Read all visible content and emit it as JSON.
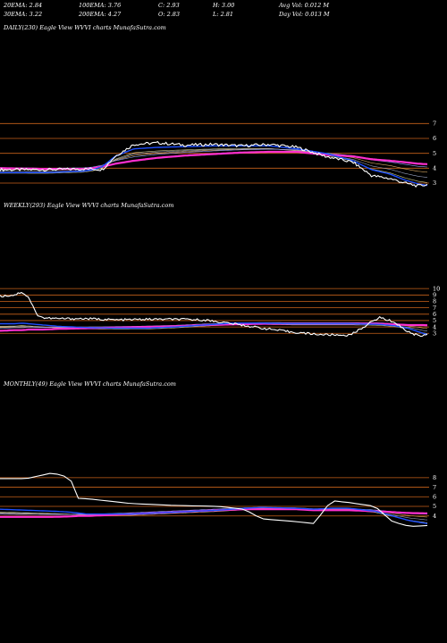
{
  "header": {
    "row1": [
      "20EMA: 2.84",
      "100EMA: 3.76",
      "C: 2.93",
      "H: 3.00",
      "Avg Vol: 0.012  M"
    ],
    "row2": [
      "30EMA: 3.22",
      "200EMA: 4.27",
      "O: 2.83",
      "L: 2.81",
      "Day Vol: 0.013 M"
    ]
  },
  "colors": {
    "price": "#ffffff",
    "ema_short": "#1e4fff",
    "ema_long": "#ff2fd0",
    "ema_mid": "#e8a020",
    "gridline": "#c8621a"
  },
  "chart_data": [
    {
      "type": "line",
      "title": "DAILY(230) Eagle  View  WVVI charts MunafaSutra.com",
      "yticks": [
        7,
        6,
        5,
        4,
        3
      ],
      "ylim": [
        2.4,
        7.8
      ],
      "x": [
        0,
        25,
        45,
        50,
        55,
        62,
        72,
        85,
        100,
        115,
        130,
        145,
        160,
        175,
        190,
        200,
        210,
        218,
        225,
        230
      ],
      "series": [
        {
          "role": "price",
          "values": [
            3.9,
            3.9,
            3.95,
            3.95,
            3.9,
            4.8,
            5.6,
            5.7,
            5.55,
            5.6,
            5.5,
            5.6,
            5.4,
            4.8,
            4.4,
            3.5,
            3.3,
            3.0,
            2.8,
            2.9
          ]
        },
        {
          "role": "ema_short",
          "values": [
            3.7,
            3.7,
            3.8,
            3.9,
            4.1,
            4.8,
            5.3,
            5.4,
            5.45,
            5.5,
            5.5,
            5.5,
            5.3,
            5.0,
            4.5,
            3.9,
            3.6,
            3.2,
            2.95,
            2.84
          ]
        },
        {
          "role": "ema_long",
          "values": [
            4.0,
            3.95,
            3.95,
            4.0,
            4.1,
            4.3,
            4.5,
            4.7,
            4.85,
            4.95,
            5.05,
            5.1,
            5.1,
            4.9,
            4.8,
            4.6,
            4.5,
            4.4,
            4.3,
            4.27
          ]
        }
      ]
    },
    {
      "type": "line",
      "title": "WEEKLY(293) Eagle  View  WVVI charts MunafaSutra.com",
      "yticks": [
        10,
        9,
        8,
        7,
        6,
        5,
        4,
        3
      ],
      "ylim": [
        1.5,
        11
      ],
      "x": [
        0,
        10,
        15,
        20,
        25,
        30,
        40,
        60,
        80,
        100,
        120,
        140,
        160,
        180,
        200,
        220,
        240,
        260,
        270,
        280,
        285,
        290,
        293
      ],
      "series": [
        {
          "role": "price",
          "values": [
            8.8,
            9.0,
            9.5,
            8.5,
            6.0,
            5.4,
            5.3,
            5.3,
            5.1,
            5.2,
            5.2,
            5.1,
            4.5,
            3.8,
            3.2,
            2.8,
            2.7,
            5.5,
            4.8,
            3.2,
            2.8,
            2.6,
            2.93
          ]
        },
        {
          "role": "ema_short",
          "values": [
            4.5,
            4.5,
            4.6,
            4.5,
            4.4,
            4.3,
            4.1,
            3.9,
            3.8,
            3.8,
            4.0,
            4.3,
            4.6,
            4.6,
            4.5,
            4.5,
            4.5,
            4.4,
            4.2,
            3.8,
            3.4,
            3.0,
            2.84
          ]
        },
        {
          "role": "ema_long",
          "values": [
            3.4,
            3.5,
            3.5,
            3.6,
            3.6,
            3.6,
            3.7,
            3.8,
            3.9,
            4.0,
            4.1,
            4.3,
            4.4,
            4.5,
            4.5,
            4.5,
            4.5,
            4.5,
            4.4,
            4.3,
            4.3,
            4.3,
            4.27
          ]
        }
      ]
    },
    {
      "type": "line",
      "title": "MONTHLY(49) Eagle  View  WVVI charts MunafaSutra.com",
      "yticks": [
        8,
        7,
        6,
        5,
        4
      ],
      "ylim": [
        2.2,
        9.2
      ],
      "x": [
        0,
        3,
        6,
        8,
        9,
        10,
        15,
        20,
        25,
        28,
        30,
        34,
        36,
        38,
        40,
        43,
        45,
        47,
        49
      ],
      "series": [
        {
          "role": "price",
          "values": [
            7.9,
            7.9,
            8.5,
            8.0,
            5.8,
            5.8,
            5.3,
            5.1,
            5.0,
            4.7,
            3.7,
            3.4,
            3.2,
            5.6,
            5.4,
            5.0,
            3.4,
            2.9,
            3.0
          ]
        },
        {
          "role": "ema_short",
          "values": [
            4.7,
            4.6,
            4.5,
            4.4,
            4.3,
            4.2,
            4.2,
            4.4,
            4.6,
            4.8,
            4.9,
            4.8,
            4.7,
            4.8,
            4.8,
            4.5,
            4.0,
            3.5,
            3.2
          ]
        },
        {
          "role": "ema_long",
          "values": [
            3.9,
            3.9,
            3.9,
            3.95,
            4.0,
            4.0,
            4.2,
            4.4,
            4.6,
            4.7,
            4.7,
            4.7,
            4.6,
            4.6,
            4.6,
            4.5,
            4.4,
            4.3,
            4.27
          ]
        }
      ]
    }
  ]
}
